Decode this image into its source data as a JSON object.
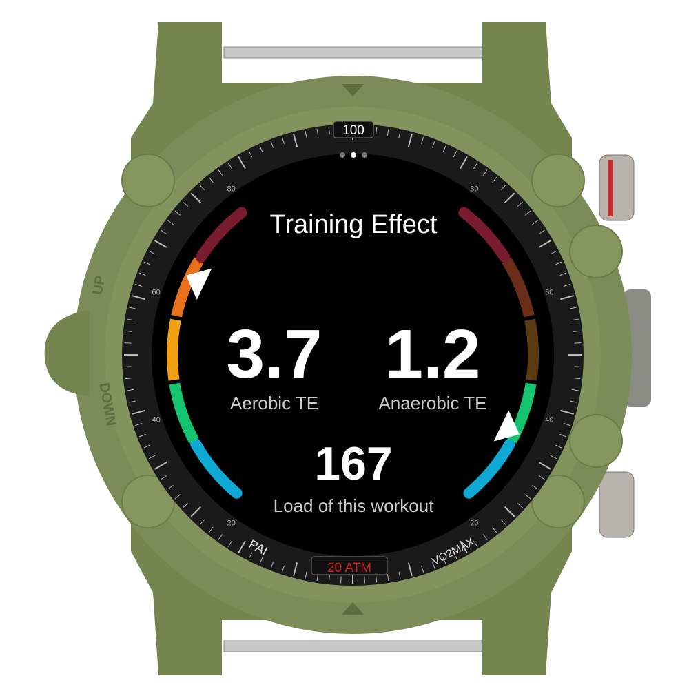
{
  "screen": {
    "title": "Training Effect",
    "page_dots": 3,
    "active_page": 2,
    "aerobic": {
      "value": "3.7",
      "label": "Aerobic TE"
    },
    "anaerobic": {
      "value": "1.2",
      "label": "Anaerobic TE"
    },
    "load": {
      "value": "167",
      "label": "Load of this workout"
    },
    "aerobic_gauge_level": 3.7,
    "anaerobic_gauge_level": 1.2,
    "gauge_scale": [
      0,
      5
    ],
    "left_gauge_colors": [
      "#10a8d4",
      "#14c46e",
      "#f0a010",
      "#e8701a",
      "#7a1c30"
    ],
    "right_gauge_colors": [
      "#10a8d4",
      "#14c46e",
      "#5a3a10",
      "#6a2e18",
      "#7a1c30"
    ]
  },
  "bezel": {
    "top_label": "100",
    "bottom_label": "20 ATM",
    "left_bottom_label": "PAI",
    "right_bottom_label": "VO2MAX",
    "scale_labels": [
      "80",
      "60",
      "40",
      "20"
    ]
  },
  "case": {
    "button_up": "UP",
    "button_down": "DOWN",
    "color": "#7b8c58"
  }
}
